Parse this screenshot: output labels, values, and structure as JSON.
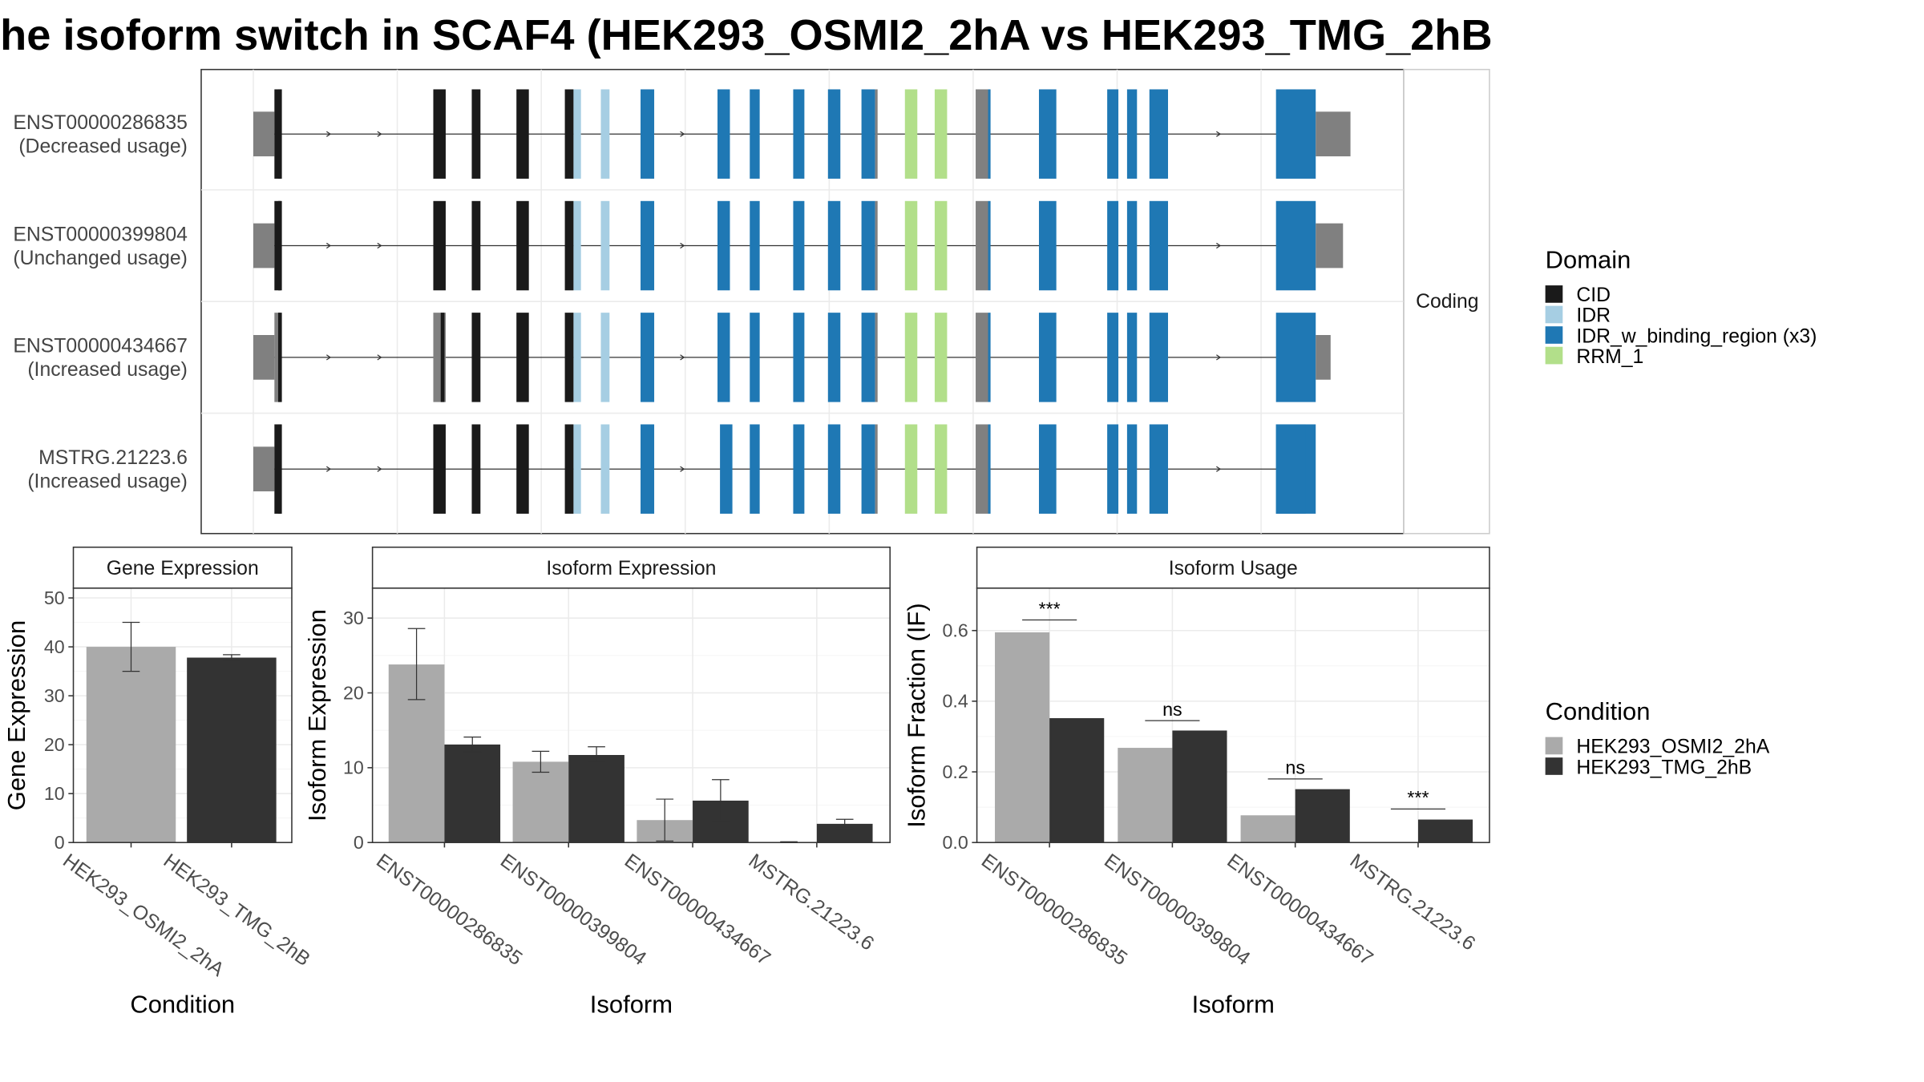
{
  "title": "he isoform switch in SCAF4 (HEK293_OSMI2_2hA vs HEK293_TMG_2hB",
  "strip_label": "Coding",
  "colors": {
    "CID": "#1a1a1a",
    "IDR": "#a6cee3",
    "IDR_w_binding_region": "#1f78b4",
    "RRM_1": "#b2df8a",
    "noncoding": "#808080",
    "cond1": "#aaaaaa",
    "cond2": "#333333"
  },
  "transcripts": [
    {
      "id": "ENST00000286835",
      "usage": "(Decreased usage)",
      "utr3_end": 1088
    },
    {
      "id": "ENST00000399804",
      "usage": "(Unchanged usage)",
      "utr3_end": 1082
    },
    {
      "id": "ENST00000434667",
      "usage": "(Increased usage)",
      "utr3_end": 1072
    },
    {
      "id": "MSTRG.21223.6",
      "usage": "(Increased usage)",
      "utr3_end": null
    }
  ],
  "domain_legend": {
    "title": "Domain",
    "items": [
      {
        "label": "CID",
        "color_key": "CID"
      },
      {
        "label": "IDR",
        "color_key": "IDR"
      },
      {
        "label": "IDR_w_binding_region (x3)",
        "color_key": "IDR_w_binding_region"
      },
      {
        "label": "RRM_1",
        "color_key": "RRM_1"
      }
    ]
  },
  "condition_legend": {
    "title": "Condition",
    "items": [
      {
        "label": "HEK293_OSMI2_2hA",
        "color_key": "cond1"
      },
      {
        "label": "HEK293_TMG_2hB",
        "color_key": "cond2"
      }
    ]
  },
  "chart_data": [
    {
      "type": "bar",
      "title": "Gene Expression",
      "xlabel": "Condition",
      "ylabel": "Gene Expression",
      "categories": [
        "HEK293_OSMI2_2hA",
        "HEK293_TMG_2hB"
      ],
      "values": [
        40,
        37.8
      ],
      "errors": [
        [
          35,
          45
        ],
        [
          37.2,
          38.4
        ]
      ],
      "ylim": [
        0,
        52
      ],
      "yticks": [
        0,
        10,
        20,
        30,
        40,
        50
      ],
      "ytick_labels": [
        "0",
        "10",
        "20",
        "30",
        "40",
        "50"
      ],
      "grid": true
    },
    {
      "type": "bar",
      "title": "Isoform Expression",
      "xlabel": "Isoform",
      "ylabel": "Isoform Expression",
      "categories": [
        "ENST00000286835",
        "ENST00000399804",
        "ENST00000434667",
        "MSTRG.21223.6"
      ],
      "series": [
        {
          "name": "HEK293_OSMI2_2hA",
          "values": [
            23.8,
            10.8,
            3.0,
            0.05
          ],
          "errors": [
            [
              19.1,
              28.6
            ],
            [
              9.4,
              12.2
            ],
            [
              0.2,
              5.8
            ],
            [
              0.0,
              0.1
            ]
          ]
        },
        {
          "name": "HEK293_TMG_2hB",
          "values": [
            13.1,
            11.7,
            5.6,
            2.5
          ],
          "errors": [
            [
              12.1,
              14.1
            ],
            [
              10.7,
              12.8
            ],
            [
              2.9,
              8.4
            ],
            [
              1.9,
              3.1
            ]
          ]
        }
      ],
      "ylim": [
        0,
        34
      ],
      "yticks": [
        0,
        10,
        20,
        30
      ],
      "ytick_labels": [
        "0",
        "10",
        "20",
        "30"
      ],
      "grid": true
    },
    {
      "type": "bar",
      "title": "Isoform Usage",
      "xlabel": "Isoform",
      "ylabel": "Isoform Fraction (IF)",
      "categories": [
        "ENST00000286835",
        "ENST00000399804",
        "ENST00000434667",
        "MSTRG.21223.6"
      ],
      "series": [
        {
          "name": "HEK293_OSMI2_2hA",
          "values": [
            0.595,
            0.268,
            0.077,
            0.0
          ]
        },
        {
          "name": "HEK293_TMG_2hB",
          "values": [
            0.352,
            0.317,
            0.151,
            0.065
          ]
        }
      ],
      "significance": [
        "***",
        "ns",
        "ns",
        "***"
      ],
      "sig_y": [
        0.63,
        0.345,
        0.18,
        0.095
      ],
      "ylim": [
        0,
        0.72
      ],
      "yticks": [
        0,
        0.2,
        0.4,
        0.6
      ],
      "ytick_labels": [
        "0.0",
        "0.2",
        "0.4",
        "0.6"
      ],
      "grid": true
    }
  ]
}
